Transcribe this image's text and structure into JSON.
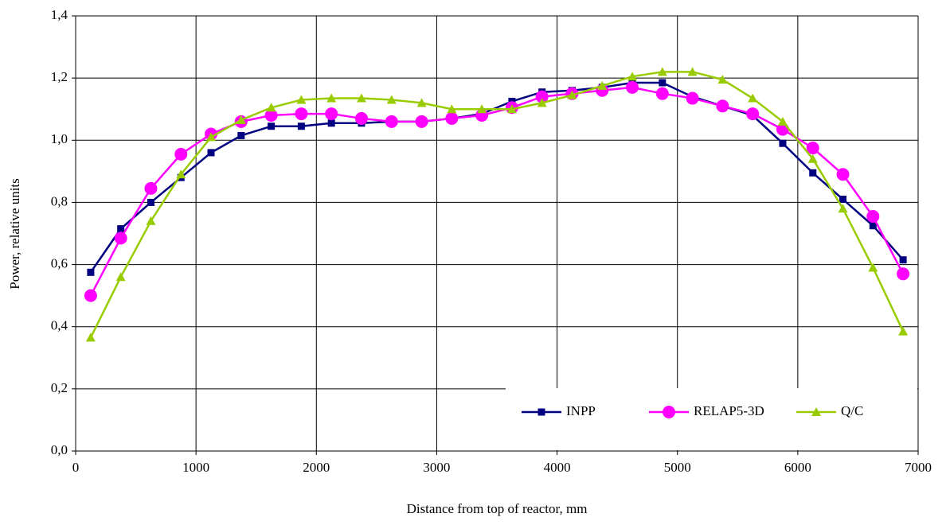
{
  "chart_data": {
    "type": "line",
    "x_label": "Distance from top of reactor, mm",
    "y_label": "Power, relative units",
    "x": [
      125,
      375,
      625,
      875,
      1125,
      1375,
      1625,
      1875,
      2125,
      2375,
      2625,
      2875,
      3125,
      3375,
      3625,
      3875,
      4125,
      4375,
      4625,
      4875,
      5125,
      5375,
      5625,
      5875,
      6125,
      6375,
      6625,
      6875
    ],
    "series": [
      {
        "name": "INPP",
        "color": "#000080",
        "marker": "square",
        "values": [
          0.575,
          0.715,
          0.8,
          0.88,
          0.96,
          1.015,
          1.045,
          1.045,
          1.055,
          1.055,
          1.06,
          1.06,
          1.07,
          1.085,
          1.125,
          1.155,
          1.16,
          1.17,
          1.185,
          1.185,
          1.14,
          1.11,
          1.08,
          0.99,
          0.895,
          0.81,
          0.725,
          0.615
        ]
      },
      {
        "name": "RELAP5-3D",
        "color": "#ff00ff",
        "marker": "circle",
        "values": [
          0.5,
          0.685,
          0.845,
          0.955,
          1.02,
          1.06,
          1.08,
          1.085,
          1.085,
          1.07,
          1.06,
          1.06,
          1.07,
          1.08,
          1.105,
          1.14,
          1.15,
          1.16,
          1.17,
          1.15,
          1.135,
          1.11,
          1.085,
          1.035,
          0.975,
          0.89,
          0.755,
          0.57
        ]
      },
      {
        "name": "Q/C",
        "color": "#99cc00",
        "marker": "triangle",
        "values": [
          0.365,
          0.56,
          0.74,
          0.89,
          1.01,
          1.065,
          1.105,
          1.13,
          1.135,
          1.135,
          1.13,
          1.12,
          1.1,
          1.1,
          1.1,
          1.12,
          1.145,
          1.175,
          1.205,
          1.22,
          1.22,
          1.195,
          1.135,
          1.06,
          0.94,
          0.78,
          0.59,
          0.385
        ]
      }
    ],
    "xlim": [
      0,
      7000
    ],
    "xticks": [
      0,
      1000,
      2000,
      3000,
      4000,
      5000,
      6000,
      7000
    ],
    "ylim": [
      0,
      1.4
    ],
    "yticks": [
      {
        "value": 0,
        "label": "0,0"
      },
      {
        "value": 0.2,
        "label": "0,2"
      },
      {
        "value": 0.4,
        "label": "0,4"
      },
      {
        "value": 0.6,
        "label": "0,6"
      },
      {
        "value": 0.8,
        "label": "0,8"
      },
      {
        "value": 1.0,
        "label": "1,0"
      },
      {
        "value": 1.2,
        "label": "1,2"
      },
      {
        "value": 1.4,
        "label": "1,4"
      }
    ],
    "grid": true,
    "legend": "lower right"
  }
}
